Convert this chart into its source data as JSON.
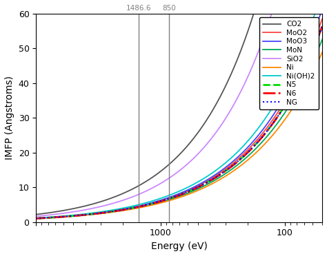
{
  "title": "",
  "xlabel": "Energy (eV)",
  "ylabel": "IMFP (Angstroms)",
  "xlim": [
    10000,
    50
  ],
  "ylim": [
    0,
    60
  ],
  "vlines": [
    1486.6,
    850
  ],
  "vline_labels": [
    "1486.6",
    "850"
  ],
  "series": [
    {
      "label": "CO2",
      "color": "#555555",
      "lw": 1.3,
      "ls": "-",
      "a": 4200,
      "b": 0.82
    },
    {
      "label": "MoO2",
      "color": "#ff4444",
      "lw": 1.3,
      "ls": "-",
      "a": 1100,
      "b": 0.75
    },
    {
      "label": "MoO3",
      "color": "#4444ff",
      "lw": 1.3,
      "ls": "-",
      "a": 1200,
      "b": 0.76
    },
    {
      "label": "MoN",
      "color": "#00aa55",
      "lw": 1.3,
      "ls": "-",
      "a": 950,
      "b": 0.74
    },
    {
      "label": "SiO2",
      "color": "#cc88ff",
      "lw": 1.3,
      "ls": "-",
      "a": 3200,
      "b": 0.82
    },
    {
      "label": "Ni",
      "color": "#ff8800",
      "lw": 1.3,
      "ls": "-",
      "a": 850,
      "b": 0.73
    },
    {
      "label": "Ni(OH)2",
      "color": "#00cccc",
      "lw": 1.3,
      "ls": "-",
      "a": 1300,
      "b": 0.76
    },
    {
      "label": "N5",
      "color": "#00dd00",
      "lw": 2.0,
      "ls": "--",
      "a": 1050,
      "b": 0.748
    },
    {
      "label": "N6",
      "color": "#ff0000",
      "lw": 2.0,
      "ls": "-.",
      "a": 1060,
      "b": 0.75
    },
    {
      "label": "NG",
      "color": "#0000ff",
      "lw": 1.5,
      "ls": ":",
      "a": 1040,
      "b": 0.746
    }
  ],
  "xticks": [
    10000,
    1000,
    100
  ],
  "xticklabels": [
    "",
    "1000",
    "100"
  ],
  "yticks": [
    0,
    10,
    20,
    30,
    40,
    50,
    60
  ],
  "bg_color": "#ffffff",
  "tick_label_size": 9,
  "axis_label_size": 10
}
